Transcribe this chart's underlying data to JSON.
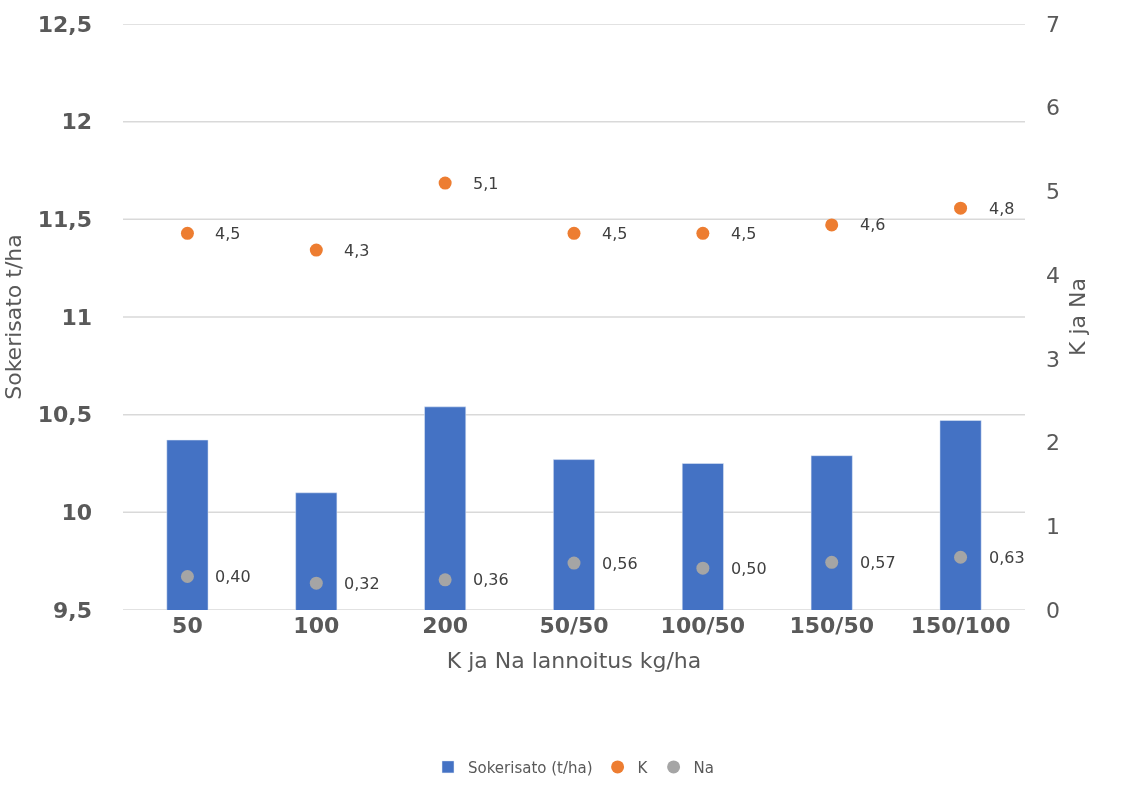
{
  "chart_data": {
    "type": "bar",
    "xlabel": "K ja Na lannoitus kg/ha",
    "ylabel": "Sokerisato t/ha",
    "y2label": "K ja Na",
    "categories": [
      "50",
      "100",
      "200",
      "50/50",
      "100/50",
      "150/50",
      "150/100"
    ],
    "series": [
      {
        "name": "Sokerisato (t/ha)",
        "color": "#4472c4",
        "values": [
          10.37,
          10.1,
          10.54,
          10.27,
          10.25,
          10.29,
          10.47
        ]
      },
      {
        "name": "K",
        "type": "scatter",
        "axis": "y2",
        "color": "#ed7d31",
        "values": [
          4.5,
          4.3,
          5.1,
          4.5,
          4.5,
          4.6,
          4.8
        ],
        "value_labels": [
          "4,5",
          "4,3",
          "5,1",
          "4,5",
          "4,5",
          "4,6",
          "4,8"
        ]
      },
      {
        "name": "Na",
        "type": "scatter",
        "axis": "y2",
        "color": "#a5a5a5",
        "values": [
          0.4,
          0.32,
          0.36,
          0.56,
          0.5,
          0.57,
          0.63
        ],
        "value_labels": [
          "0,40",
          "0,32",
          "0,36",
          "0,56",
          "0,50",
          "0,57",
          "0,63"
        ]
      }
    ],
    "ylim": [
      9.5,
      12.5
    ],
    "yticks": [
      {
        "value": 9.5,
        "label": "9,5"
      },
      10,
      {
        "value": 10.5,
        "label": "10,5"
      },
      11,
      {
        "value": 11.5,
        "label": "11,5"
      },
      12,
      {
        "value": 12.5,
        "label": "12,5"
      }
    ],
    "y2lim": [
      0,
      7
    ],
    "y2ticks": [
      0,
      1,
      2,
      3,
      4,
      5,
      6,
      7
    ],
    "grid": "y",
    "legend": "bottom",
    "marker": "circle"
  }
}
